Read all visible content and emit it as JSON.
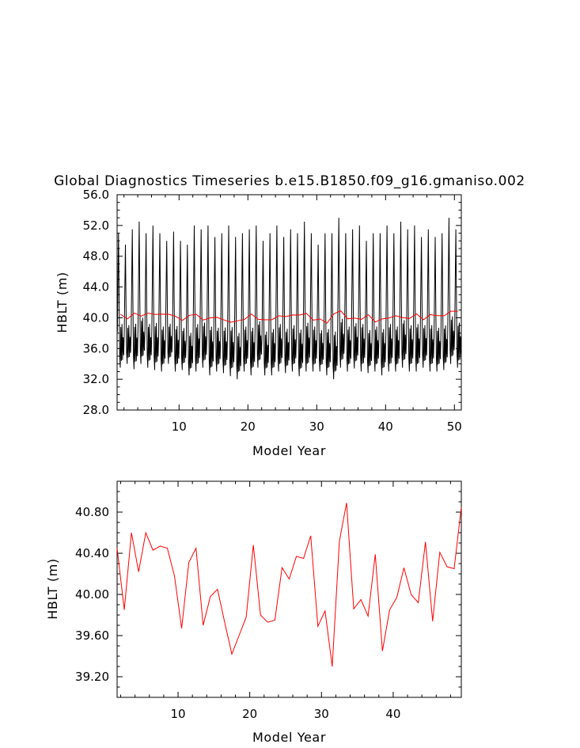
{
  "title": "Global Diagnostics Timeseries b.e15.B1850.f09_g16.gmaniso.002",
  "chart_data": [
    {
      "type": "line",
      "xlabel": "Model Year",
      "ylabel": "HBLT (m)",
      "xlim": [
        1,
        51
      ],
      "ylim": [
        28.0,
        56.0
      ],
      "x_ticks": [
        10,
        20,
        30,
        40,
        50
      ],
      "y_ticks": [
        28.0,
        32.0,
        36.0,
        40.0,
        44.0,
        48.0,
        52.0,
        56.0
      ],
      "y_tick_labels": [
        "28.0",
        "32.0",
        "36.0",
        "40.0",
        "44.0",
        "48.0",
        "52.0",
        "56.0"
      ],
      "series": [
        {
          "color": "#000000",
          "kind": "monthly",
          "annual_cycle": [
            38.0,
            44.5,
            50.6,
            42.0,
            35.0,
            33.4,
            38.6,
            34.3,
            39.0,
            34.4,
            37.3,
            35.0
          ],
          "year_max": [
            51.0,
            49.5,
            51.5,
            52.5,
            51.0,
            52.0,
            51.0,
            50.0,
            51.2,
            50.0,
            49.5,
            52.0,
            51.5,
            52.0,
            50.5,
            51.0,
            52.0,
            50.5,
            51.0,
            51.5,
            52.0,
            50.0,
            51.0,
            52.0,
            50.5,
            51.5,
            51.0,
            52.5,
            51.0,
            49.5,
            51.0,
            51.0,
            53.0,
            51.0,
            51.5,
            52.0,
            50.0,
            51.0,
            51.0,
            52.0,
            51.0,
            52.5,
            51.5,
            52.0,
            50.5,
            51.5,
            50.5,
            51.0,
            53.0,
            51.5
          ],
          "year_min": [
            33.5,
            34.0,
            33.3,
            34.0,
            33.5,
            33.2,
            33.0,
            34.0,
            33.0,
            33.2,
            32.5,
            33.0,
            33.5,
            32.5,
            33.0,
            32.8,
            32.4,
            32.0,
            33.0,
            32.5,
            33.5,
            32.5,
            32.5,
            33.0,
            32.8,
            33.0,
            32.4,
            33.0,
            33.0,
            33.0,
            32.5,
            32.0,
            33.5,
            33.0,
            33.4,
            33.0,
            32.8,
            33.0,
            32.5,
            33.0,
            33.0,
            33.5,
            33.0,
            33.0,
            33.5,
            33.0,
            33.0,
            33.2,
            34.0,
            33.5
          ]
        },
        {
          "color": "#ff0000",
          "kind": "annual",
          "x": [
            1.5,
            2.5,
            3.5,
            4.5,
            5.5,
            6.5,
            7.5,
            8.5,
            9.5,
            10.5,
            11.5,
            12.5,
            13.5,
            14.5,
            15.5,
            16.5,
            17.5,
            18.5,
            19.5,
            20.5,
            21.5,
            22.5,
            23.5,
            24.5,
            25.5,
            26.5,
            27.5,
            28.5,
            29.5,
            30.5,
            31.5,
            32.5,
            33.5,
            34.5,
            35.5,
            36.5,
            37.5,
            38.5,
            39.5,
            40.5,
            41.5,
            42.5,
            43.5,
            44.5,
            45.5,
            46.5,
            47.5,
            48.5,
            49.5,
            50.5
          ],
          "values": [
            40.45,
            39.85,
            40.6,
            40.22,
            40.6,
            40.43,
            40.47,
            40.45,
            40.18,
            39.67,
            40.31,
            40.45,
            39.7,
            39.98,
            40.05,
            39.73,
            39.42,
            39.6,
            39.78,
            40.48,
            39.8,
            39.73,
            39.75,
            40.26,
            40.15,
            40.37,
            40.35,
            40.57,
            39.69,
            39.84,
            39.3,
            40.52,
            40.89,
            39.86,
            39.95,
            39.79,
            40.39,
            39.45,
            39.85,
            39.97,
            40.26,
            40.0,
            39.92,
            40.51,
            39.74,
            40.41,
            40.27,
            40.25,
            40.85,
            40.85
          ]
        }
      ]
    },
    {
      "type": "line",
      "xlabel": "Model Year",
      "ylabel": "HBLT (m)",
      "xlim": [
        1.5,
        49.5
      ],
      "ylim": [
        39.0,
        41.1
      ],
      "x_ticks": [
        10,
        20,
        30,
        40
      ],
      "y_ticks": [
        39.2,
        39.6,
        40.0,
        40.4,
        40.8
      ],
      "y_tick_labels": [
        "39.20",
        "39.60",
        "40.00",
        "40.40",
        "40.80"
      ],
      "series": [
        {
          "color": "#ff0000",
          "x": [
            1.5,
            2.5,
            3.5,
            4.5,
            5.5,
            6.5,
            7.5,
            8.5,
            9.5,
            10.5,
            11.5,
            12.5,
            13.5,
            14.5,
            15.5,
            16.5,
            17.5,
            18.5,
            19.5,
            20.5,
            21.5,
            22.5,
            23.5,
            24.5,
            25.5,
            26.5,
            27.5,
            28.5,
            29.5,
            30.5,
            31.5,
            32.5,
            33.5,
            34.5,
            35.5,
            36.5,
            37.5,
            38.5,
            39.5,
            40.5,
            41.5,
            42.5,
            43.5,
            44.5,
            45.5,
            46.5,
            47.5,
            48.5,
            49.5
          ],
          "values": [
            40.45,
            39.85,
            40.6,
            40.22,
            40.6,
            40.43,
            40.47,
            40.45,
            40.18,
            39.67,
            40.31,
            40.45,
            39.7,
            39.98,
            40.05,
            39.73,
            39.42,
            39.6,
            39.78,
            40.48,
            39.8,
            39.73,
            39.75,
            40.26,
            40.15,
            40.37,
            40.35,
            40.57,
            39.69,
            39.84,
            39.3,
            40.52,
            40.89,
            39.86,
            39.95,
            39.79,
            40.39,
            39.45,
            39.85,
            39.97,
            40.26,
            40.0,
            39.92,
            40.51,
            39.74,
            40.41,
            40.27,
            40.25,
            40.85
          ]
        }
      ]
    }
  ]
}
